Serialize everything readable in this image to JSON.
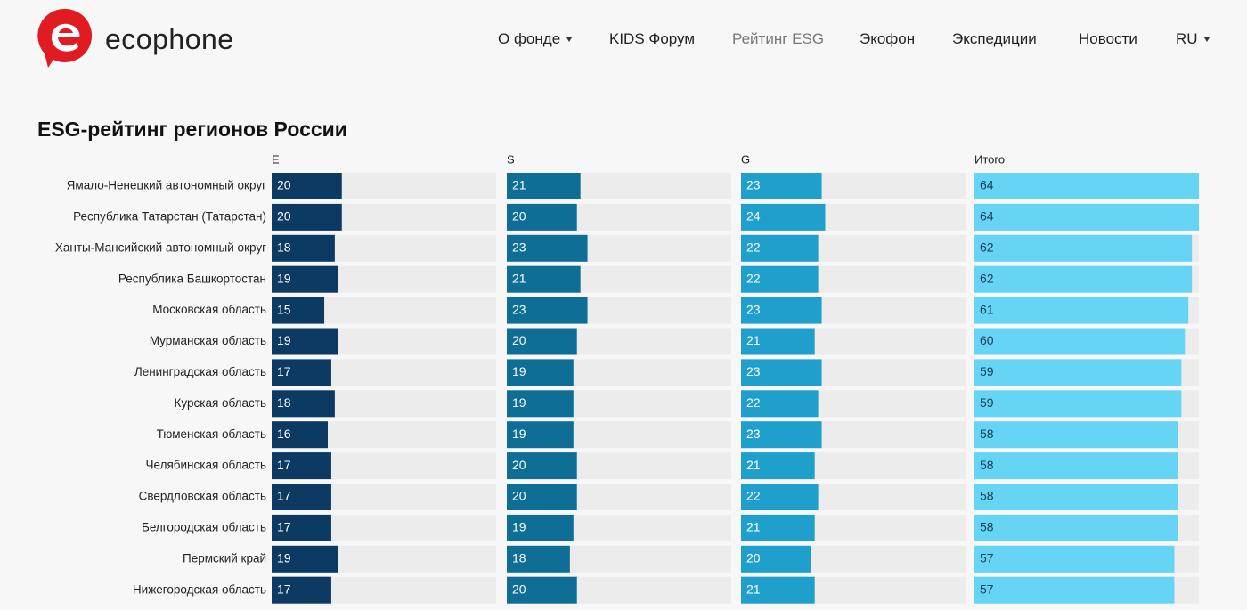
{
  "header": {
    "logo_text": "ecophone",
    "nav": [
      "О фонде",
      "KIDS Форум",
      "Рейтинг ESG",
      "Экофон",
      "Экспедиции",
      "Новости",
      "RU"
    ]
  },
  "chart_data": {
    "type": "bar",
    "title": "ESG-рейтинг регионов России",
    "categories": [
      "Ямало-Ненецкий автономный округ",
      "Республика Татарстан (Татарстан)",
      "Ханты-Мансийский автономный округ",
      "Республика Башкортостан",
      "Московская область",
      "Мурманская область",
      "Ленинградская область",
      "Курская область",
      "Тюменская область",
      "Челябинская область",
      "Свердловская область",
      "Белгородская область",
      "Пермский край",
      "Нижегородская область"
    ],
    "xlim": [
      0,
      64
    ],
    "series": [
      {
        "name": "E",
        "color": "#0d3a63",
        "values": [
          20,
          20,
          18,
          19,
          15,
          19,
          17,
          18,
          16,
          17,
          17,
          17,
          19,
          17
        ]
      },
      {
        "name": "S",
        "color": "#0f6e96",
        "values": [
          21,
          20,
          23,
          21,
          23,
          20,
          19,
          19,
          19,
          20,
          20,
          19,
          18,
          20
        ]
      },
      {
        "name": "G",
        "color": "#1fa0cc",
        "values": [
          23,
          24,
          22,
          22,
          23,
          21,
          23,
          22,
          23,
          21,
          22,
          21,
          20,
          21
        ]
      },
      {
        "name": "Итого",
        "color": "#66d4f5",
        "values": [
          64,
          64,
          62,
          62,
          61,
          60,
          59,
          59,
          58,
          58,
          58,
          58,
          57,
          57
        ]
      }
    ]
  }
}
